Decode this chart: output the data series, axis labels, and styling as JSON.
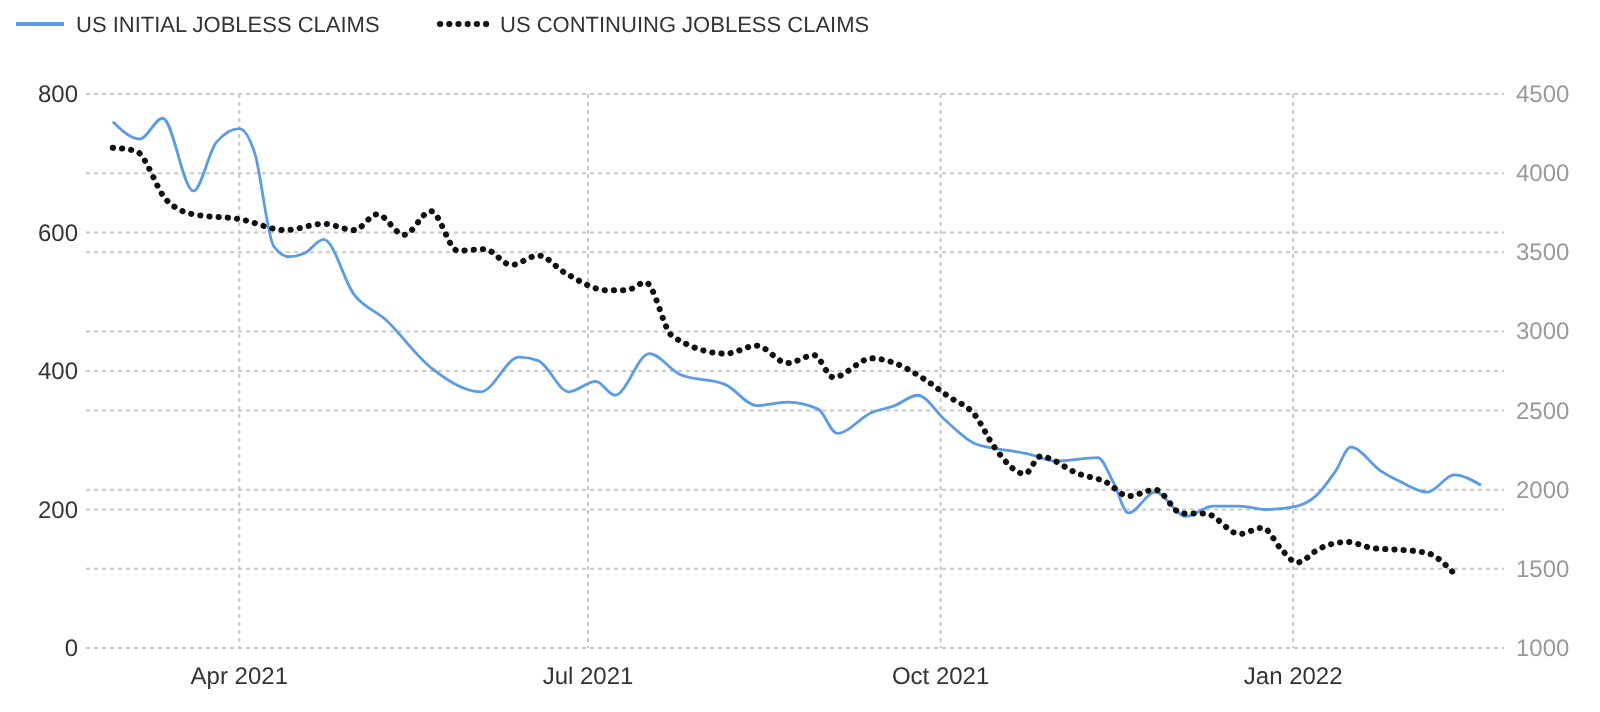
{
  "chart_data": {
    "type": "line",
    "xlim": [
      "2021-02-20",
      "2022-02-25"
    ],
    "xticks": [
      {
        "value": "2021-04-01",
        "label": "Apr 2021"
      },
      {
        "value": "2021-07-01",
        "label": "Jul 2021"
      },
      {
        "value": "2021-10-01",
        "label": "Oct 2021"
      },
      {
        "value": "2022-01-01",
        "label": "Jan 2022"
      }
    ],
    "ylim": [
      0,
      800
    ],
    "yticks": [
      0,
      200,
      400,
      600,
      800
    ],
    "y2lim": [
      1000,
      4500
    ],
    "y2ticks": [
      1000,
      1500,
      2000,
      2500,
      3000,
      3500,
      4000,
      4500
    ],
    "grid": true,
    "legend": "top left",
    "series": [
      {
        "name": "US INITIAL JOBLESS CLAIMS",
        "color": "#5a9be6",
        "line_style": "solid",
        "axis": "y",
        "x": [
          "2021-02-27",
          "2021-03-06",
          "2021-03-12",
          "2021-03-20",
          "2021-03-26",
          "2021-04-01",
          "2021-04-05",
          "2021-04-10",
          "2021-04-14",
          "2021-04-18",
          "2021-04-23",
          "2021-05-01",
          "2021-05-09",
          "2021-05-21",
          "2021-06-03",
          "2021-06-13",
          "2021-06-18",
          "2021-06-26",
          "2021-07-03",
          "2021-07-08",
          "2021-07-17",
          "2021-07-25",
          "2021-08-06",
          "2021-08-14",
          "2021-08-22",
          "2021-08-30",
          "2021-09-04",
          "2021-09-13",
          "2021-09-19",
          "2021-09-25",
          "2021-10-02",
          "2021-10-10",
          "2021-10-19",
          "2021-10-24",
          "2021-10-31",
          "2021-11-11",
          "2021-11-15",
          "2021-11-19",
          "2021-11-26",
          "2021-12-04",
          "2021-12-11",
          "2021-12-18",
          "2021-12-25",
          "2022-01-02",
          "2022-01-07",
          "2022-01-12",
          "2022-01-16",
          "2022-01-24",
          "2022-01-29",
          "2022-02-05",
          "2022-02-12",
          "2022-02-19"
        ],
        "values": [
          760,
          735,
          765,
          660,
          730,
          750,
          715,
          580,
          565,
          570,
          590,
          510,
          475,
          405,
          370,
          420,
          415,
          370,
          385,
          365,
          425,
          395,
          380,
          350,
          355,
          345,
          310,
          340,
          350,
          365,
          330,
          295,
          285,
          280,
          270,
          275,
          240,
          195,
          225,
          190,
          205,
          205,
          200,
          205,
          220,
          255,
          290,
          255,
          240,
          225,
          250,
          235
        ]
      },
      {
        "name": "US CONTINUING JOBLESS CLAIMS",
        "color": "#111111",
        "line_style": "dotted",
        "axis": "y2",
        "x": [
          "2021-02-27",
          "2021-03-05",
          "2021-03-13",
          "2021-03-20",
          "2021-04-01",
          "2021-04-13",
          "2021-04-23",
          "2021-05-01",
          "2021-05-07",
          "2021-05-14",
          "2021-05-21",
          "2021-05-28",
          "2021-06-04",
          "2021-06-11",
          "2021-06-18",
          "2021-06-25",
          "2021-07-06",
          "2021-07-11",
          "2021-07-16",
          "2021-07-23",
          "2021-08-06",
          "2021-08-14",
          "2021-08-22",
          "2021-08-29",
          "2021-09-03",
          "2021-09-13",
          "2021-09-19",
          "2021-09-26",
          "2021-10-03",
          "2021-10-10",
          "2021-10-15",
          "2021-10-23",
          "2021-10-27",
          "2021-11-06",
          "2021-11-13",
          "2021-11-19",
          "2021-11-26",
          "2021-12-03",
          "2021-12-09",
          "2021-12-18",
          "2021-12-24",
          "2021-12-29",
          "2022-01-02",
          "2022-01-08",
          "2022-01-15",
          "2022-01-22",
          "2022-01-29",
          "2022-02-05",
          "2022-02-12"
        ],
        "values": [
          4160,
          4140,
          3830,
          3740,
          3710,
          3640,
          3680,
          3640,
          3740,
          3610,
          3760,
          3510,
          3520,
          3420,
          3480,
          3370,
          3260,
          3260,
          3310,
          2970,
          2860,
          2910,
          2800,
          2850,
          2710,
          2830,
          2800,
          2710,
          2590,
          2470,
          2270,
          2100,
          2210,
          2100,
          2050,
          1960,
          2000,
          1850,
          1850,
          1720,
          1760,
          1620,
          1540,
          1630,
          1670,
          1630,
          1620,
          1600,
          1470
        ]
      }
    ]
  }
}
